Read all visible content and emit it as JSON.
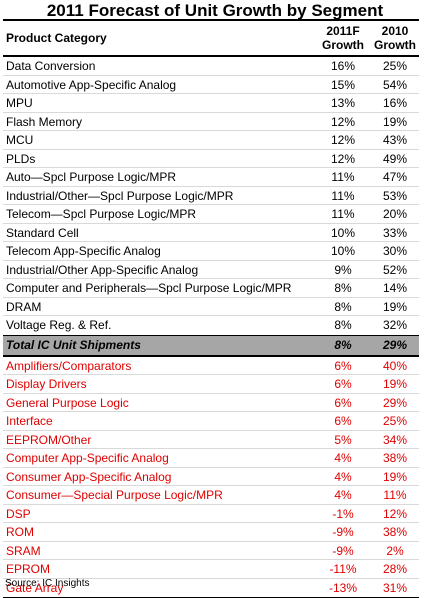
{
  "chart_data": {
    "type": "table",
    "title": "2011 Forecast of Unit Growth by Segment",
    "columns": {
      "category": "Product Category",
      "growth_2011f_line1": "2011F",
      "growth_2011f_line2": "Growth",
      "growth_2010_line1": "2010",
      "growth_2010_line2": "Growth"
    },
    "rows_above": [
      {
        "name": "Data Conversion",
        "g2011": "16%",
        "g2010": "25%"
      },
      {
        "name": "Automotive App-Specific Analog",
        "g2011": "15%",
        "g2010": "54%"
      },
      {
        "name": "MPU",
        "g2011": "13%",
        "g2010": "16%"
      },
      {
        "name": "Flash Memory",
        "g2011": "12%",
        "g2010": "19%"
      },
      {
        "name": "MCU",
        "g2011": "12%",
        "g2010": "43%"
      },
      {
        "name": "PLDs",
        "g2011": "12%",
        "g2010": "49%"
      },
      {
        "name": "Auto—Spcl Purpose Logic/MPR",
        "g2011": "11%",
        "g2010": "47%"
      },
      {
        "name": "Industrial/Other—Spcl Purpose Logic/MPR",
        "g2011": "11%",
        "g2010": "53%"
      },
      {
        "name": "Telecom—Spcl Purpose Logic/MPR",
        "g2011": "11%",
        "g2010": "20%"
      },
      {
        "name": "Standard Cell",
        "g2011": "10%",
        "g2010": "33%"
      },
      {
        "name": "Telecom App-Specific Analog",
        "g2011": "10%",
        "g2010": "30%"
      },
      {
        "name": "Industrial/Other App-Specific Analog",
        "g2011": "9%",
        "g2010": "52%"
      },
      {
        "name": "Computer and Peripherals—Spcl Purpose Logic/MPR",
        "g2011": "8%",
        "g2010": "14%"
      },
      {
        "name": "DRAM",
        "g2011": "8%",
        "g2010": "19%"
      },
      {
        "name": "Voltage Reg. & Ref.",
        "g2011": "8%",
        "g2010": "32%"
      }
    ],
    "total": {
      "name": "Total IC Unit Shipments",
      "g2011": "8%",
      "g2010": "29%"
    },
    "rows_below": [
      {
        "name": "Amplifiers/Comparators",
        "g2011": "6%",
        "g2010": "40%"
      },
      {
        "name": "Display Drivers",
        "g2011": "6%",
        "g2010": "19%"
      },
      {
        "name": "General Purpose Logic",
        "g2011": "6%",
        "g2010": "29%"
      },
      {
        "name": "Interface",
        "g2011": "6%",
        "g2010": "25%"
      },
      {
        "name": "EEPROM/Other",
        "g2011": "5%",
        "g2010": "34%"
      },
      {
        "name": "Computer App-Specific Analog",
        "g2011": "4%",
        "g2010": "38%"
      },
      {
        "name": "Consumer App-Specific Analog",
        "g2011": "4%",
        "g2010": "19%"
      },
      {
        "name": "Consumer—Special Purpose Logic/MPR",
        "g2011": "4%",
        "g2010": "11%"
      },
      {
        "name": "DSP",
        "g2011": "-1%",
        "g2010": "12%"
      },
      {
        "name": "ROM",
        "g2011": "-9%",
        "g2010": "38%"
      },
      {
        "name": "SRAM",
        "g2011": "-9%",
        "g2010": "2%"
      },
      {
        "name": "EPROM",
        "g2011": "-11%",
        "g2010": "28%"
      },
      {
        "name": "Gate Array",
        "g2011": "-13%",
        "g2010": "31%"
      }
    ],
    "colors": {
      "above_text": "#000000",
      "below_text": "#e00000",
      "total_bg": "#a6a6a6"
    },
    "source": "Source:  IC Insights"
  }
}
